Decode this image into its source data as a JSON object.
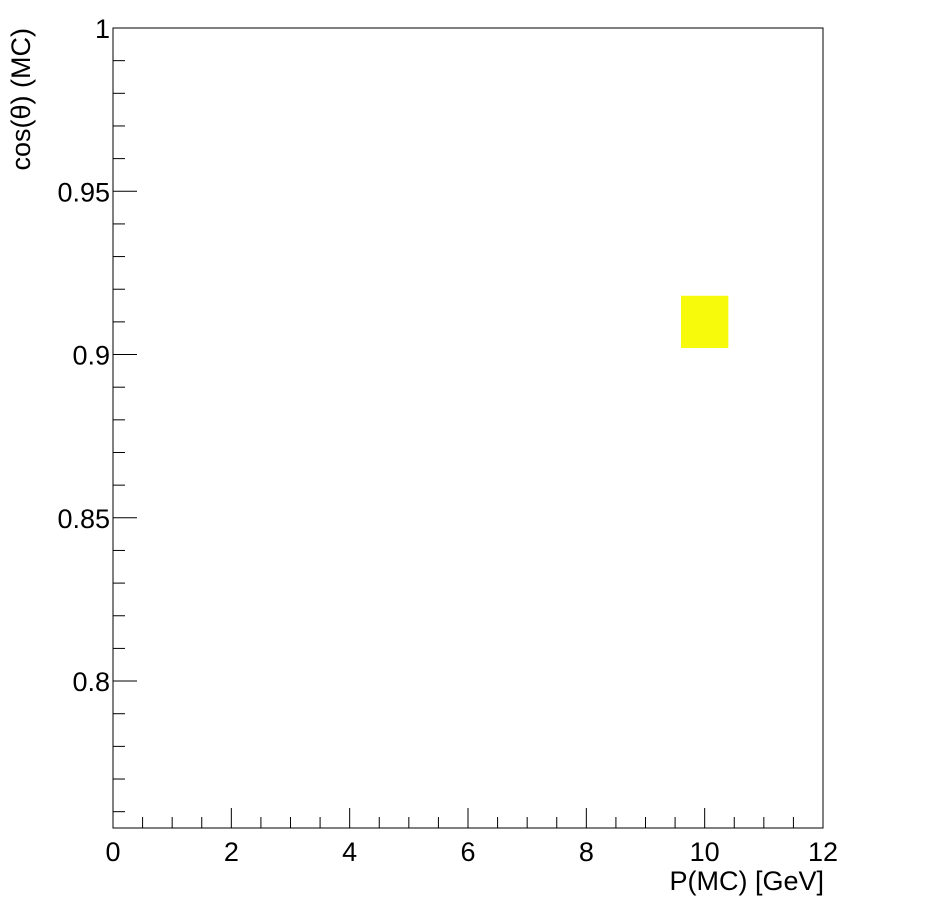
{
  "chart_data": {
    "type": "heatmap",
    "title": "",
    "xlabel": "P(MC) [GeV]",
    "ylabel": "cos(θ) (MC)",
    "xlim": [
      0,
      12
    ],
    "ylim": [
      0.755,
      1.0
    ],
    "x_ticks": [
      {
        "value": 0,
        "label": "0"
      },
      {
        "value": 2,
        "label": "2"
      },
      {
        "value": 4,
        "label": "4"
      },
      {
        "value": 6,
        "label": "6"
      },
      {
        "value": 8,
        "label": "8"
      },
      {
        "value": 10,
        "label": "10"
      },
      {
        "value": 12,
        "label": "12"
      }
    ],
    "y_ticks": [
      {
        "value": 0.8,
        "label": "0.8"
      },
      {
        "value": 0.85,
        "label": "0.85"
      },
      {
        "value": 0.9,
        "label": "0.9"
      },
      {
        "value": 0.95,
        "label": "0.95"
      },
      {
        "value": 1.0,
        "label": "1"
      }
    ],
    "x_minor_step": 0.5,
    "y_minor_step": 0.01,
    "grid": false,
    "legend": "none",
    "cells": [
      {
        "x0": 9.6,
        "x1": 10.4,
        "y0": 0.902,
        "y1": 0.918,
        "color": "#f8fa0c"
      }
    ]
  }
}
